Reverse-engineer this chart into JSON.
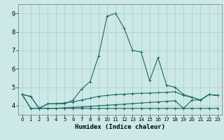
{
  "xlabel": "Humidex (Indice chaleur)",
  "xlim": [
    -0.5,
    23.5
  ],
  "ylim": [
    3.5,
    9.5
  ],
  "xticks": [
    0,
    1,
    2,
    3,
    4,
    5,
    6,
    7,
    8,
    9,
    10,
    11,
    12,
    13,
    14,
    15,
    16,
    17,
    18,
    19,
    20,
    21,
    22,
    23
  ],
  "yticks": [
    4,
    5,
    6,
    7,
    8,
    9
  ],
  "bg_color": "#cce8e8",
  "line_color": "#1a6b5e",
  "grid_color": "#aacccc",
  "line1_x": [
    0,
    1,
    2,
    3,
    4,
    5,
    6,
    7,
    8,
    9,
    10,
    11,
    12,
    13,
    14,
    15,
    16,
    17,
    18,
    19,
    20,
    21,
    22,
    23
  ],
  "line1_y": [
    4.6,
    4.5,
    3.85,
    4.1,
    4.1,
    4.1,
    4.3,
    4.9,
    5.3,
    6.7,
    8.85,
    9.0,
    8.2,
    7.0,
    6.9,
    5.35,
    6.6,
    5.1,
    5.0,
    4.6,
    4.45,
    4.3,
    4.6,
    4.55
  ],
  "line2_x": [
    0,
    1,
    2,
    3,
    4,
    5,
    6,
    7,
    8,
    9,
    10,
    11,
    12,
    13,
    14,
    15,
    16,
    17,
    18,
    19,
    20,
    21,
    22,
    23
  ],
  "line2_y": [
    4.6,
    4.5,
    3.85,
    4.1,
    4.1,
    4.15,
    4.2,
    4.3,
    4.4,
    4.5,
    4.55,
    4.6,
    4.62,
    4.65,
    4.67,
    4.68,
    4.7,
    4.72,
    4.75,
    4.55,
    4.45,
    4.3,
    4.6,
    4.55
  ],
  "line3_x": [
    0,
    1,
    2,
    3,
    4,
    5,
    6,
    7,
    8,
    9,
    10,
    11,
    12,
    13,
    14,
    15,
    16,
    17,
    18,
    19,
    20,
    21,
    22,
    23
  ],
  "line3_y": [
    4.6,
    3.85,
    3.85,
    3.85,
    3.85,
    3.88,
    3.9,
    3.93,
    3.96,
    3.99,
    4.02,
    4.05,
    4.08,
    4.11,
    4.14,
    4.17,
    4.2,
    4.23,
    4.26,
    3.85,
    4.3,
    4.3,
    4.6,
    4.55
  ],
  "line4_x": [
    0,
    1,
    2,
    3,
    4,
    5,
    6,
    7,
    8,
    9,
    10,
    11,
    12,
    13,
    14,
    15,
    16,
    17,
    18,
    19,
    20,
    21,
    22,
    23
  ],
  "line4_y": [
    4.6,
    3.85,
    3.85,
    3.85,
    3.85,
    3.85,
    3.85,
    3.85,
    3.85,
    3.85,
    3.85,
    3.85,
    3.85,
    3.85,
    3.85,
    3.85,
    3.85,
    3.85,
    3.85,
    3.85,
    3.85,
    3.85,
    3.85,
    3.85
  ]
}
